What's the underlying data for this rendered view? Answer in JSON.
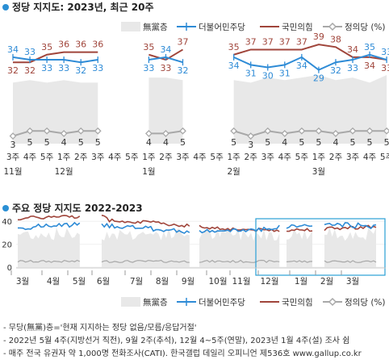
{
  "colors": {
    "nonpartisan": "#e8e8e8",
    "dem": "#2e8bd6",
    "ppp": "#a0453b",
    "justice": "#a8a8a8",
    "title_dot": "#2a8fd4",
    "axis": "#888888",
    "highlight": "#2a9fd6"
  },
  "chart_data": [
    {
      "type": "line",
      "title": "정당 지지도: 2023년, 최근 20주",
      "legend": [
        "無黨층",
        "더불어민주당",
        "국민의힘",
        "정의당 (%)"
      ],
      "week_labels": [
        "3주",
        "4주",
        "5주",
        "1주",
        "2주",
        "3주",
        "4주",
        "5주",
        "1주",
        "2주",
        "3주",
        "4주",
        "5주",
        "1주",
        "2주",
        "3주",
        "4주",
        "5주",
        "1주",
        "2주",
        "3주",
        "4주",
        "5주"
      ],
      "month_labels": [
        {
          "text": "11월",
          "at": 0
        },
        {
          "text": "12월",
          "at": 3
        },
        {
          "text": "1월",
          "at": 8
        },
        {
          "text": "2월",
          "at": 13
        },
        {
          "text": "3월",
          "at": 18
        }
      ],
      "segments": [
        {
          "start": 0,
          "end": 5,
          "nonpartisan": [
            24,
            25,
            24,
            25,
            24,
            24
          ],
          "dem": [
            34,
            33,
            33,
            33,
            32,
            33
          ],
          "ppp": [
            32,
            32,
            35,
            36,
            36,
            36
          ],
          "justice": [
            3,
            5,
            5,
            4,
            5,
            5
          ]
        },
        {
          "start": 8,
          "end": 10,
          "nonpartisan": [
            26,
            26,
            25
          ],
          "dem": [
            33,
            34,
            32
          ],
          "ppp": [
            35,
            33,
            37
          ],
          "justice": [
            4,
            4,
            5
          ]
        },
        {
          "start": 13,
          "end": 22,
          "nonpartisan": [
            25,
            24,
            26,
            25,
            26,
            27,
            25,
            26,
            24,
            27
          ],
          "dem": [
            34,
            31,
            30,
            31,
            34,
            29,
            32,
            33,
            35,
            33
          ],
          "ppp": [
            35,
            37,
            37,
            37,
            37,
            39,
            38,
            34,
            34,
            33
          ],
          "justice": [
            5,
            3,
            5,
            4,
            5,
            5,
            4,
            5,
            5,
            5
          ]
        }
      ],
      "ylim": [
        0,
        45
      ]
    },
    {
      "type": "line",
      "title": "주요 정당 지지도 2022-2023",
      "y_ticks": [
        0,
        20,
        40
      ],
      "ylim": [
        0,
        50
      ],
      "month_labels": [
        "3월",
        "4월",
        "5월",
        "6월",
        "7월",
        "8월",
        "9월",
        "10월",
        "11월",
        "12월",
        "1월",
        "2월",
        "3월"
      ]
    }
  ],
  "notes": [
    "- 무당(無黨)층='현재 지지하는 정당 없음/모름/응답거절'",
    "- 2022년 5월 4주(지방선거 직전), 9월 2주(추석), 12월 4~5주(연말), 2023년 1월 4주(설) 조사 쉼",
    "- 매주 전국 유권자 약 1,000명 전화조사(CATI). 한국갤럽 데일리 오피니언 제536호 www.gallup.co.kr"
  ]
}
